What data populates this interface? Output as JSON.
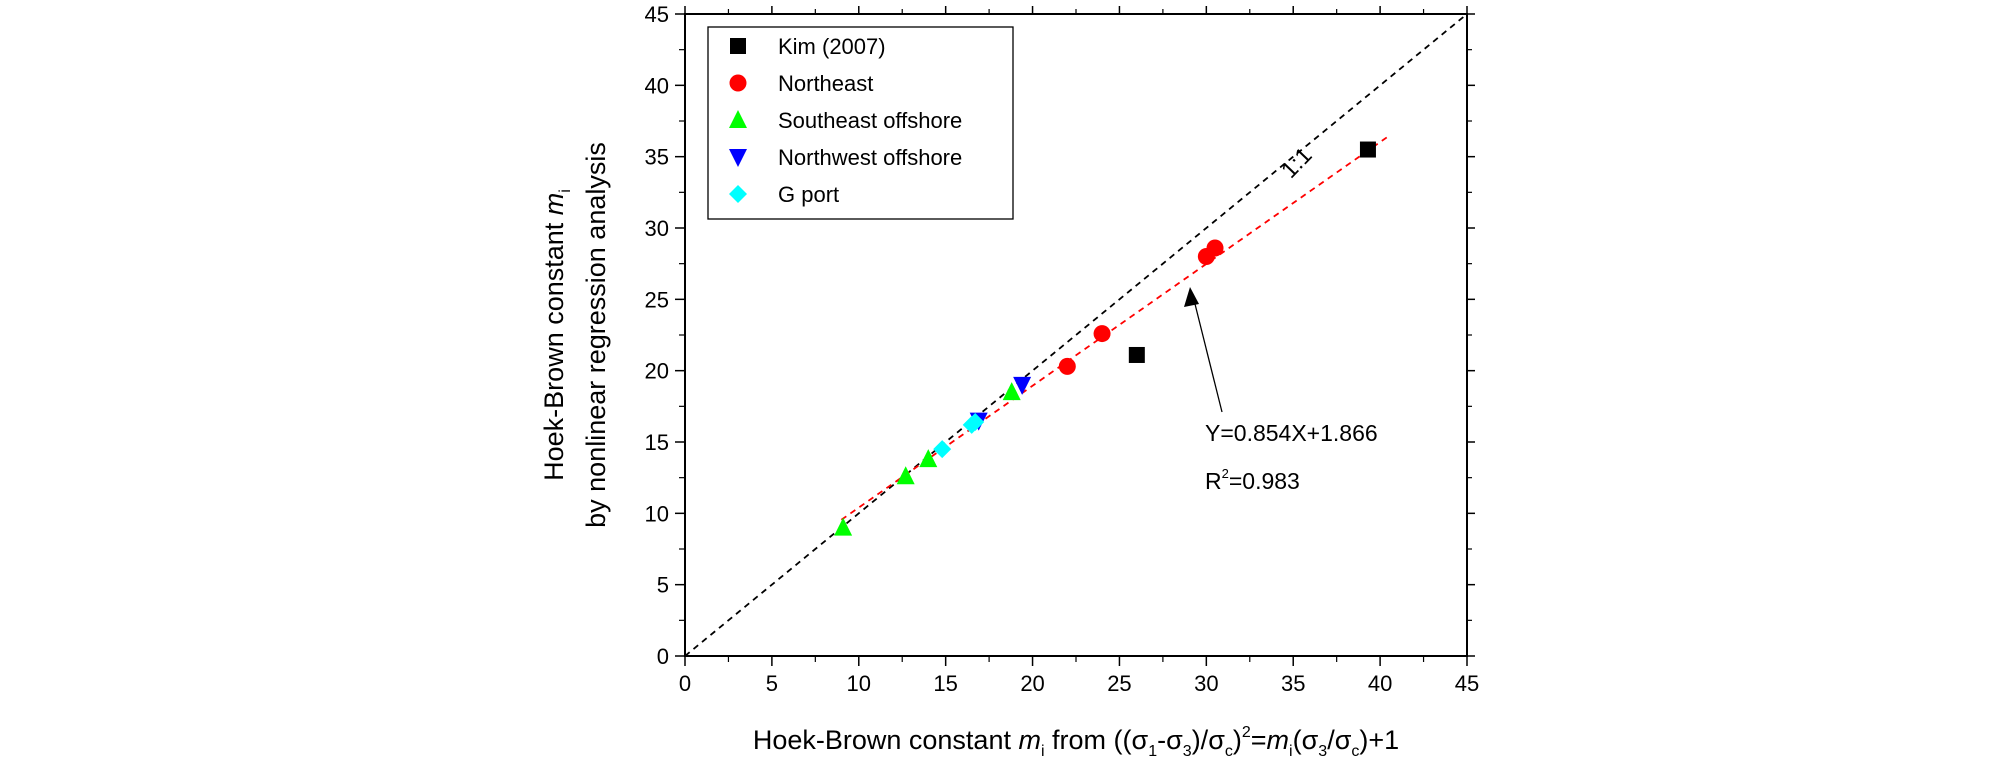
{
  "chart_data": {
    "type": "scatter",
    "title": "",
    "xlabel": {
      "part1": "Hoek-Brown constant ",
      "m": "m",
      "i": "i",
      "part2": " from ((",
      "sigma1": "σ",
      "sub1": "1",
      "minus": "-",
      "sigma3": "σ",
      "sub3": "3",
      "slash1": ")/",
      "sigmac": "σ",
      "subc": "c",
      "close": ")",
      "sup2": "2",
      "eq": "=",
      "m2": "m",
      "i2": "i",
      "open2": "(",
      "sigma3b": "σ",
      "sub3b": "3",
      "slash2": "/",
      "sigmacb": "σ",
      "subcb": "c",
      "tail": ")+1"
    },
    "ylabel": {
      "line1_text": "Hoek-Brown constant ",
      "line1_m": "m",
      "line1_i": "i",
      "line2": "by nonlinear regression analysis"
    },
    "xlim": [
      0,
      45
    ],
    "ylim": [
      0,
      45
    ],
    "xticks": [
      "0",
      "5",
      "10",
      "15",
      "20",
      "25",
      "30",
      "35",
      "40",
      "45"
    ],
    "yticks": [
      "0",
      "5",
      "10",
      "15",
      "20",
      "25",
      "30",
      "35",
      "40",
      "45"
    ],
    "grid": false,
    "legend_position": "top-left",
    "series": [
      {
        "name": "Kim (2007)",
        "marker": "square",
        "color": "#000000",
        "points": [
          [
            26.0,
            21.1
          ],
          [
            39.3,
            35.5
          ]
        ]
      },
      {
        "name": "Northeast",
        "marker": "circle",
        "color": "#ff0000",
        "points": [
          [
            22.0,
            20.3
          ],
          [
            24.0,
            22.6
          ],
          [
            30.0,
            28.0
          ],
          [
            30.5,
            28.6
          ]
        ]
      },
      {
        "name": "Southeast offshore",
        "marker": "triangle-up",
        "color": "#00ff00",
        "points": [
          [
            9.1,
            9.0
          ],
          [
            12.7,
            12.6
          ],
          [
            14.0,
            13.8
          ],
          [
            18.8,
            18.5
          ]
        ]
      },
      {
        "name": "Northwest offshore",
        "marker": "triangle-down",
        "color": "#0000ff",
        "points": [
          [
            16.9,
            16.5
          ],
          [
            19.4,
            19.0
          ]
        ]
      },
      {
        "name": "G port",
        "marker": "diamond",
        "color": "#00ffff",
        "points": [
          [
            14.8,
            14.5
          ],
          [
            16.5,
            16.2
          ],
          [
            16.7,
            16.4
          ]
        ]
      }
    ],
    "lines": [
      {
        "name": "1:1",
        "style": "dashed",
        "color": "#000000",
        "from": [
          0,
          0
        ],
        "to": [
          45,
          45
        ]
      },
      {
        "name": "fit",
        "style": "dashed",
        "color": "#ff0000",
        "from": [
          9.0,
          9.55
        ],
        "to": [
          40.5,
          36.45
        ]
      }
    ],
    "annotations": {
      "one_to_one": "1:1",
      "equation": "Y=0.854X+1.866",
      "r2_prefix": "R",
      "r2_sup": "2",
      "r2_value": "=0.983"
    }
  }
}
